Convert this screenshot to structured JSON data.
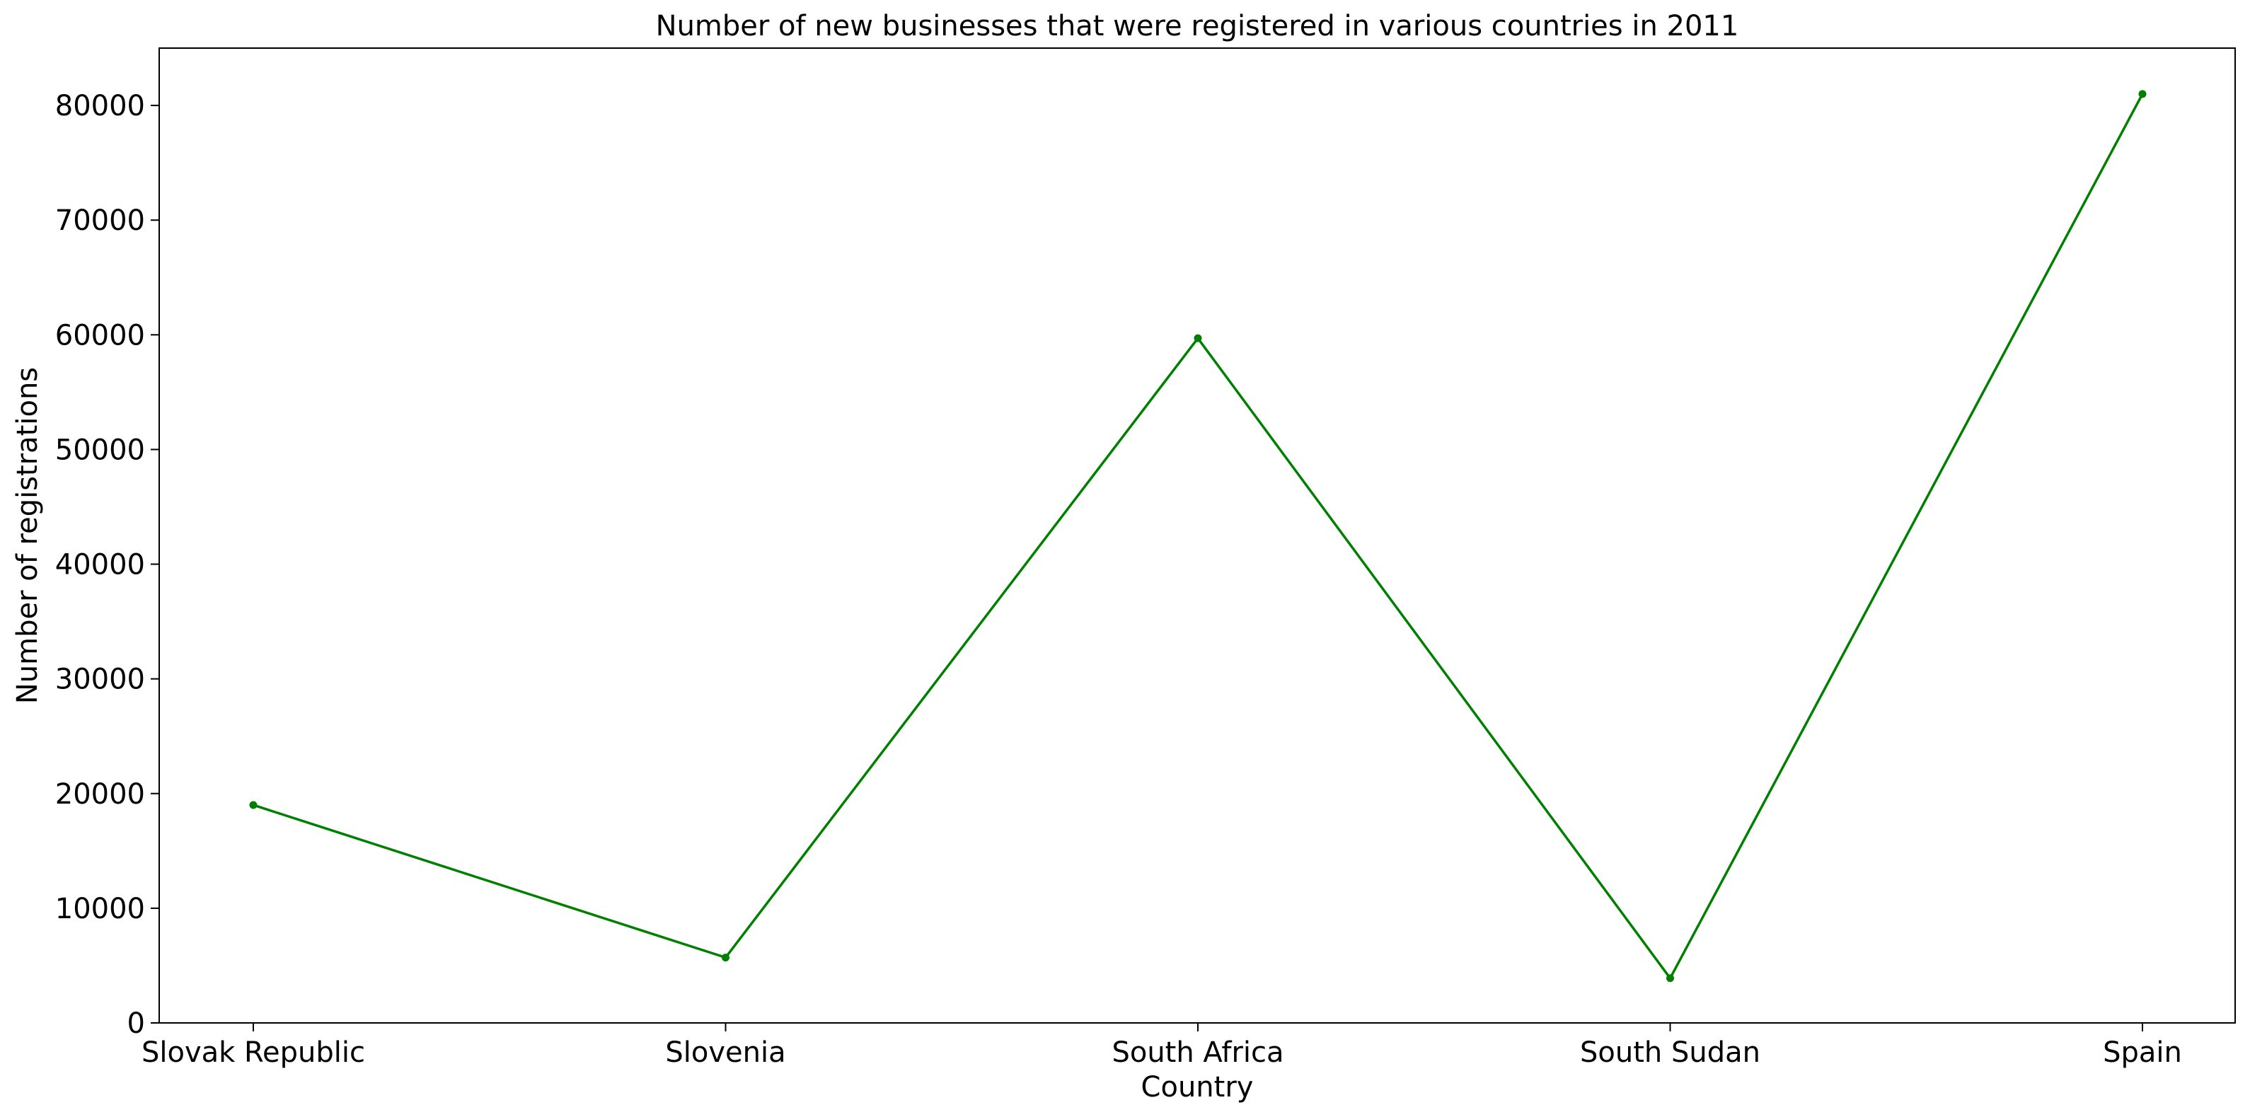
{
  "chart_data": {
    "type": "line",
    "title": "Number of new businesses that were registered in various countries in 2011",
    "xlabel": "Country",
    "ylabel": "Number of registrations",
    "categories": [
      "Slovak Republic",
      "Slovenia",
      "South Africa",
      "South Sudan",
      "Spain"
    ],
    "series": [
      {
        "values": [
          19000,
          5700,
          59700,
          3900,
          81000
        ],
        "color": "#008000"
      }
    ],
    "ylim": [
      0,
      85000
    ],
    "yticks": [
      0,
      10000,
      20000,
      30000,
      40000,
      50000,
      60000,
      70000,
      80000
    ],
    "grid": false,
    "legend": false
  }
}
